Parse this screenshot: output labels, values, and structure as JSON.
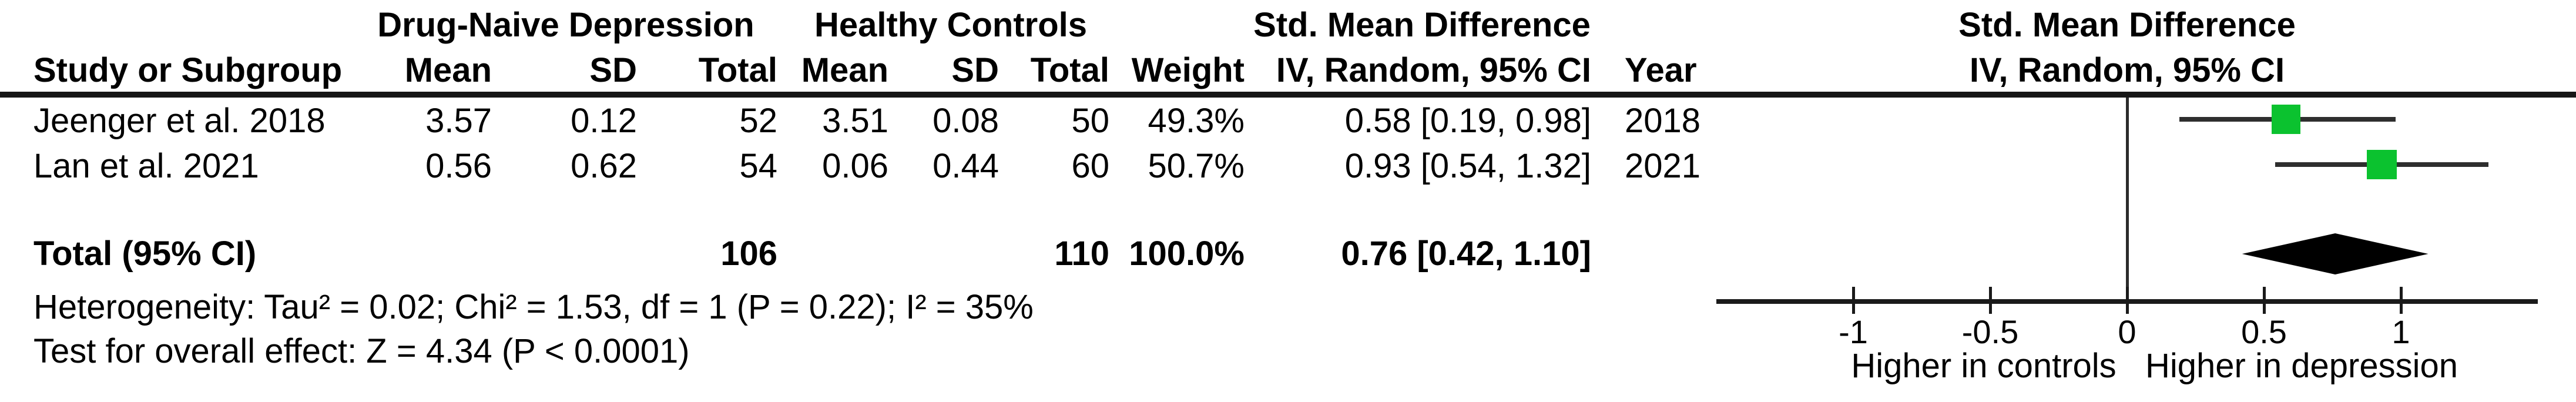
{
  "headers": {
    "group1": "Drug-Naive Depression",
    "group2": "Healthy Controls",
    "smd_table": "Std. Mean Difference",
    "smd_plot": "Std. Mean Difference",
    "study": "Study or Subgroup",
    "mean": "Mean",
    "sd": "SD",
    "total": "Total",
    "weight": "Weight",
    "iv": "IV, Random, 95% CI",
    "iv_plot": "IV, Random, 95% CI",
    "year": "Year"
  },
  "chart_data": {
    "type": "forest",
    "effect_measure": "Std. Mean Difference",
    "method": "IV, Random, 95% CI",
    "group_labels": [
      "Drug-Naive Depression",
      "Healthy Controls"
    ],
    "studies": [
      {
        "label": "Jeenger et al. 2018",
        "exp_mean": "3.57",
        "exp_sd": "0.12",
        "exp_total": "52",
        "ctl_mean": "3.51",
        "ctl_sd": "0.08",
        "ctl_total": "50",
        "weight": "49.3%",
        "weight_pct": 49.3,
        "smd": 0.58,
        "ci_low": 0.19,
        "ci_high": 0.98,
        "ci_label": "0.58 [0.19, 0.98]",
        "year": "2018"
      },
      {
        "label": "Lan et al. 2021",
        "exp_mean": "0.56",
        "exp_sd": "0.62",
        "exp_total": "54",
        "ctl_mean": "0.06",
        "ctl_sd": "0.44",
        "ctl_total": "60",
        "weight": "50.7%",
        "weight_pct": 50.7,
        "smd": 0.93,
        "ci_low": 0.54,
        "ci_high": 1.32,
        "ci_label": "0.93 [0.54, 1.32]",
        "year": "2021"
      }
    ],
    "total": {
      "label": "Total (95% CI)",
      "exp_total": "106",
      "ctl_total": "110",
      "weight": "100.0%",
      "smd": 0.76,
      "ci_low": 0.42,
      "ci_high": 1.1,
      "ci_label": "0.76 [0.42, 1.10]"
    },
    "heterogeneity": "Heterogeneity: Tau² = 0.02; Chi² = 1.53, df = 1 (P = 0.22); I² = 35%",
    "overall_effect": "Test for overall effect: Z = 4.34 (P < 0.0001)",
    "axis": {
      "ticks": [
        -1,
        -0.5,
        0,
        0.5,
        1
      ],
      "tick_labels": [
        "-1",
        "-0.5",
        "0",
        "0.5",
        "1"
      ],
      "xlim": [
        -1.5,
        1.5
      ],
      "left_label": "Higher in controls",
      "right_label": "Higher in depression"
    },
    "colors": {
      "marker": "#0bc22f",
      "diamond": "#000000",
      "line": "#2e2e2e"
    }
  }
}
